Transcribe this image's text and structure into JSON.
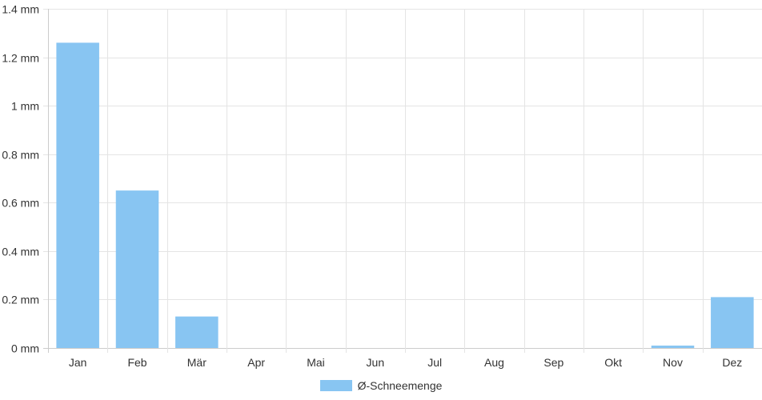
{
  "chart_data": {
    "type": "bar",
    "categories": [
      "Jan",
      "Feb",
      "Mär",
      "Apr",
      "Mai",
      "Jun",
      "Jul",
      "Aug",
      "Sep",
      "Okt",
      "Nov",
      "Dez"
    ],
    "series": [
      {
        "name": "Ø-Schneemenge",
        "values": [
          1.26,
          0.65,
          0.13,
          0,
          0,
          0,
          0,
          0,
          0,
          0,
          0.01,
          0.21
        ]
      }
    ],
    "y_ticks": [
      "0 mm",
      "0.2 mm",
      "0.4 mm",
      "0.6 mm",
      "0.8 mm",
      "1 mm",
      "1.2 mm",
      "1.4 mm"
    ],
    "ylim": [
      0,
      1.4
    ],
    "unit": "mm",
    "grid": true,
    "legend_position": "bottom"
  },
  "colors": {
    "bar": "#88c5f2",
    "grid": "#e4e4e4",
    "axis": "#cccccc",
    "text": "#333333"
  }
}
